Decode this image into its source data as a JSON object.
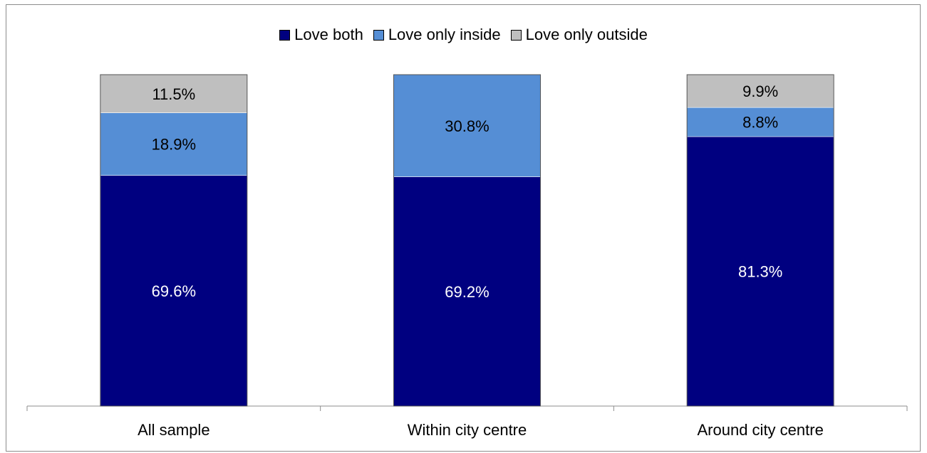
{
  "chart_data": {
    "type": "bar",
    "stacked": true,
    "categories": [
      "All sample",
      "Within city centre",
      "Around city centre"
    ],
    "series": [
      {
        "name": "Love both",
        "values": [
          69.6,
          69.2,
          81.3
        ],
        "labels": [
          "69.6%",
          "69.2%",
          "81.3%"
        ],
        "color": "#000080"
      },
      {
        "name": "Love only inside",
        "values": [
          18.9,
          30.8,
          8.8
        ],
        "labels": [
          "18.9%",
          "30.8%",
          "8.8%"
        ],
        "color": "#558ed5"
      },
      {
        "name": "Love only outside",
        "values": [
          11.5,
          0,
          9.9
        ],
        "labels": [
          "11.5%",
          "",
          "9.9%"
        ],
        "color": "#bfbfbf"
      }
    ],
    "ylim": [
      0,
      100
    ],
    "grid": false,
    "legend": "top-center",
    "label_colors": {
      "Love both": "#ffffff",
      "Love only inside": "#000000",
      "Love only outside": "#000000"
    }
  }
}
